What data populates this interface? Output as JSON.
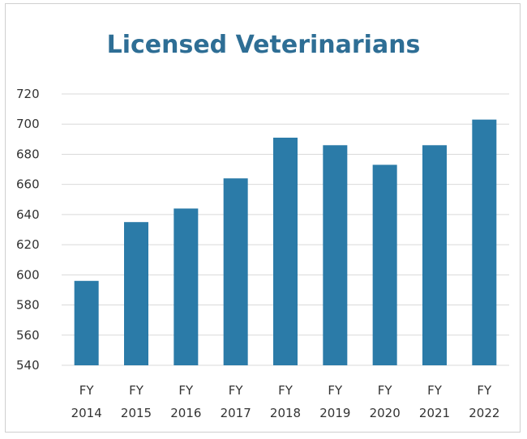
{
  "chart_data": {
    "type": "bar",
    "title": "Licensed Veterinarians",
    "xlabel": "",
    "ylabel": "",
    "categories": [
      [
        "FY",
        "2014"
      ],
      [
        "FY",
        "2015"
      ],
      [
        "FY",
        "2016"
      ],
      [
        "FY",
        "2017"
      ],
      [
        "FY",
        "2018"
      ],
      [
        "FY",
        "2019"
      ],
      [
        "FY",
        "2020"
      ],
      [
        "FY",
        "2021"
      ],
      [
        "FY",
        "2022"
      ]
    ],
    "values": [
      596,
      635,
      644,
      664,
      691,
      686,
      673,
      686,
      703
    ],
    "ylim": [
      540,
      720
    ],
    "yticks": [
      540,
      560,
      580,
      600,
      620,
      640,
      660,
      680,
      700,
      720
    ],
    "grid": true,
    "legend": "none",
    "bar_color": "#2b7ba8",
    "title_color": "#2e6e95",
    "grid_color": "#d9d9d9"
  }
}
